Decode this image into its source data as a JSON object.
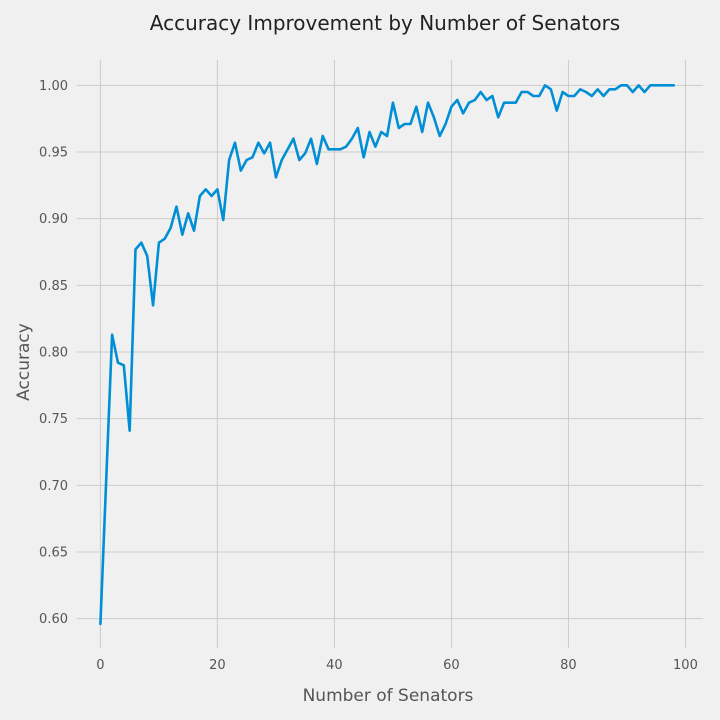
{
  "chart_data": {
    "type": "line",
    "title": "Accuracy Improvement by Number of Senators",
    "xlabel": "Number of Senators",
    "ylabel": "Accuracy",
    "xlim": [
      -4,
      103
    ],
    "ylim": [
      0.578,
      1.019
    ],
    "xticks": [
      0,
      20,
      40,
      60,
      80,
      100
    ],
    "yticks": [
      0.6,
      0.65,
      0.7,
      0.75,
      0.8,
      0.85,
      0.9,
      0.95,
      1.0
    ],
    "grid": true,
    "legend": "none",
    "series": [
      {
        "color": "#008fd5",
        "x": [
          0,
          1,
          2,
          3,
          4,
          5,
          6,
          7,
          8,
          9,
          10,
          11,
          12,
          13,
          14,
          15,
          16,
          17,
          18,
          19,
          20,
          21,
          22,
          23,
          24,
          25,
          26,
          27,
          28,
          29,
          30,
          31,
          32,
          33,
          34,
          35,
          36,
          37,
          38,
          39,
          40,
          41,
          42,
          43,
          44,
          45,
          46,
          47,
          48,
          49,
          50,
          51,
          52,
          53,
          54,
          55,
          56,
          57,
          58,
          59,
          60,
          61,
          62,
          63,
          64,
          65,
          66,
          67,
          68,
          69,
          70,
          71,
          72,
          73,
          74,
          75,
          76,
          77,
          78,
          79,
          80,
          81,
          82,
          83,
          84,
          85,
          86,
          87,
          88,
          89,
          90,
          91,
          92,
          93,
          94,
          95,
          96,
          97,
          98
        ],
        "y": [
          0.596,
          0.705,
          0.813,
          0.792,
          0.79,
          0.741,
          0.877,
          0.882,
          0.872,
          0.835,
          0.882,
          0.885,
          0.893,
          0.909,
          0.888,
          0.904,
          0.891,
          0.917,
          0.922,
          0.917,
          0.922,
          0.899,
          0.944,
          0.957,
          0.936,
          0.944,
          0.946,
          0.957,
          0.949,
          0.957,
          0.931,
          0.944,
          0.952,
          0.96,
          0.944,
          0.949,
          0.96,
          0.941,
          0.962,
          0.952,
          0.952,
          0.952,
          0.954,
          0.96,
          0.968,
          0.946,
          0.965,
          0.954,
          0.965,
          0.962,
          0.987,
          0.968,
          0.971,
          0.971,
          0.984,
          0.965,
          0.987,
          0.976,
          0.962,
          0.971,
          0.984,
          0.989,
          0.979,
          0.987,
          0.989,
          0.995,
          0.989,
          0.992,
          0.976,
          0.987,
          0.987,
          0.987,
          0.995,
          0.995,
          0.992,
          0.992,
          1.0,
          0.997,
          0.981,
          0.995,
          0.992,
          0.992,
          0.997,
          0.995,
          0.992,
          0.997,
          0.992,
          0.997,
          0.997,
          1.0,
          1.0,
          0.995,
          1.0,
          0.995,
          1.0,
          1.0,
          1.0,
          1.0,
          1.0
        ]
      }
    ]
  }
}
